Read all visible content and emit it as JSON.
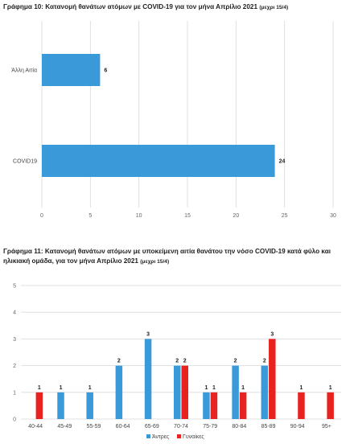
{
  "chart_data": [
    {
      "type": "bar",
      "orientation": "horizontal",
      "title": "Γράφημα 10: Κατανομή θανάτων ατόμων με COVID-19 για τον μήνα Απρίλιο 2021",
      "subtitle": "(μεχρι 15/4)",
      "categories": [
        "Άλλη Αιτία",
        "COVID19"
      ],
      "values": [
        6,
        24
      ],
      "xlim": [
        0,
        30
      ],
      "xticks": [
        "0",
        "5",
        "10",
        "15",
        "20",
        "25",
        "30"
      ],
      "grid": "vertical",
      "colors": {
        "bar": "#3a9ad9"
      }
    },
    {
      "type": "bar",
      "title": "Γράφημα 11: Κατανομή θανάτων ατόμων με υποκείμενη αιτία θανάτου την νόσο COVID-19 κατά φύλο και ηλικιακή ομάδα, για τον μήνα Απρίλιο 2021",
      "subtitle": "(μεχρι 15/4)",
      "categories": [
        "40-44",
        "45-49",
        "55-59",
        "60-64",
        "65-69",
        "70-74",
        "75-79",
        "80-84",
        "85-89",
        "90-94",
        "95+"
      ],
      "series": [
        {
          "name": "Άντρες",
          "values": [
            0,
            1,
            1,
            2,
            3,
            2,
            1,
            2,
            2,
            0,
            0
          ]
        },
        {
          "name": "Γυναίκες",
          "values": [
            1,
            0,
            0,
            0,
            0,
            2,
            1,
            1,
            3,
            1,
            1
          ]
        }
      ],
      "ylim": [
        0,
        5
      ],
      "yticks": [
        "0",
        "1",
        "2",
        "3",
        "4",
        "5"
      ],
      "grid": "horizontal",
      "legend": "bottom",
      "colors": {
        "men": "#3a9ad9",
        "women": "#e8231f"
      }
    }
  ]
}
